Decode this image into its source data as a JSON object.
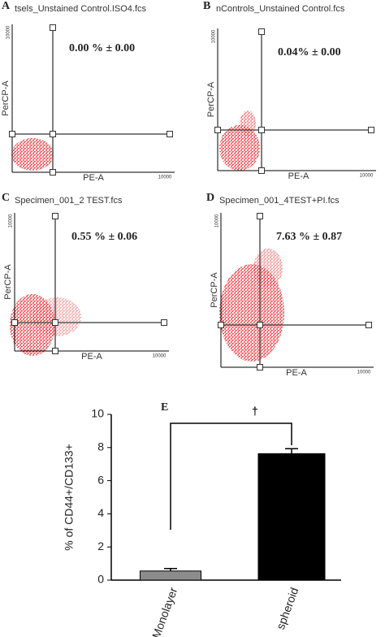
{
  "panels": [
    {
      "letter": "A",
      "file": "tsels_Unstained Control.ISO4.fcs",
      "percent": "0.00 % ± 0.00",
      "y_label": "PerCP-A",
      "x_label": "PE-A",
      "x_max": "10000",
      "y_max": "10000"
    },
    {
      "letter": "B",
      "file": "nControls_Unstained Control.fcs",
      "percent": "0.04% ± 0.00",
      "y_label": "PerCP-A",
      "x_label": "PE-A",
      "x_max": "10000",
      "y_max": "10000"
    },
    {
      "letter": "C",
      "file": "Specimen_001_2 TEST.fcs",
      "percent": "0.55 % ± 0.06",
      "y_label": "PerCP-A",
      "x_label": "PE-A",
      "x_max": "10000",
      "y_max": "10000"
    },
    {
      "letter": "D",
      "file": "Specimen_001_4TEST+PI.fcs",
      "percent": "7.63 % ± 0.87",
      "y_label": "PerCP-A",
      "x_label": "PE-A",
      "x_max": "10000",
      "y_max": "10000"
    }
  ],
  "chart_data": {
    "type": "bar",
    "label": "E",
    "categories": [
      "Monolayer",
      "spheroid"
    ],
    "values": [
      0.55,
      7.63
    ],
    "errors": [
      0.15,
      0.3
    ],
    "colors": [
      "#8c8c8c",
      "#000000"
    ],
    "ylim": [
      0,
      10
    ],
    "yticks": [
      0,
      2,
      4,
      6,
      8,
      10
    ],
    "y_label": "% of CD44+/CD133+",
    "annotation": "†"
  }
}
